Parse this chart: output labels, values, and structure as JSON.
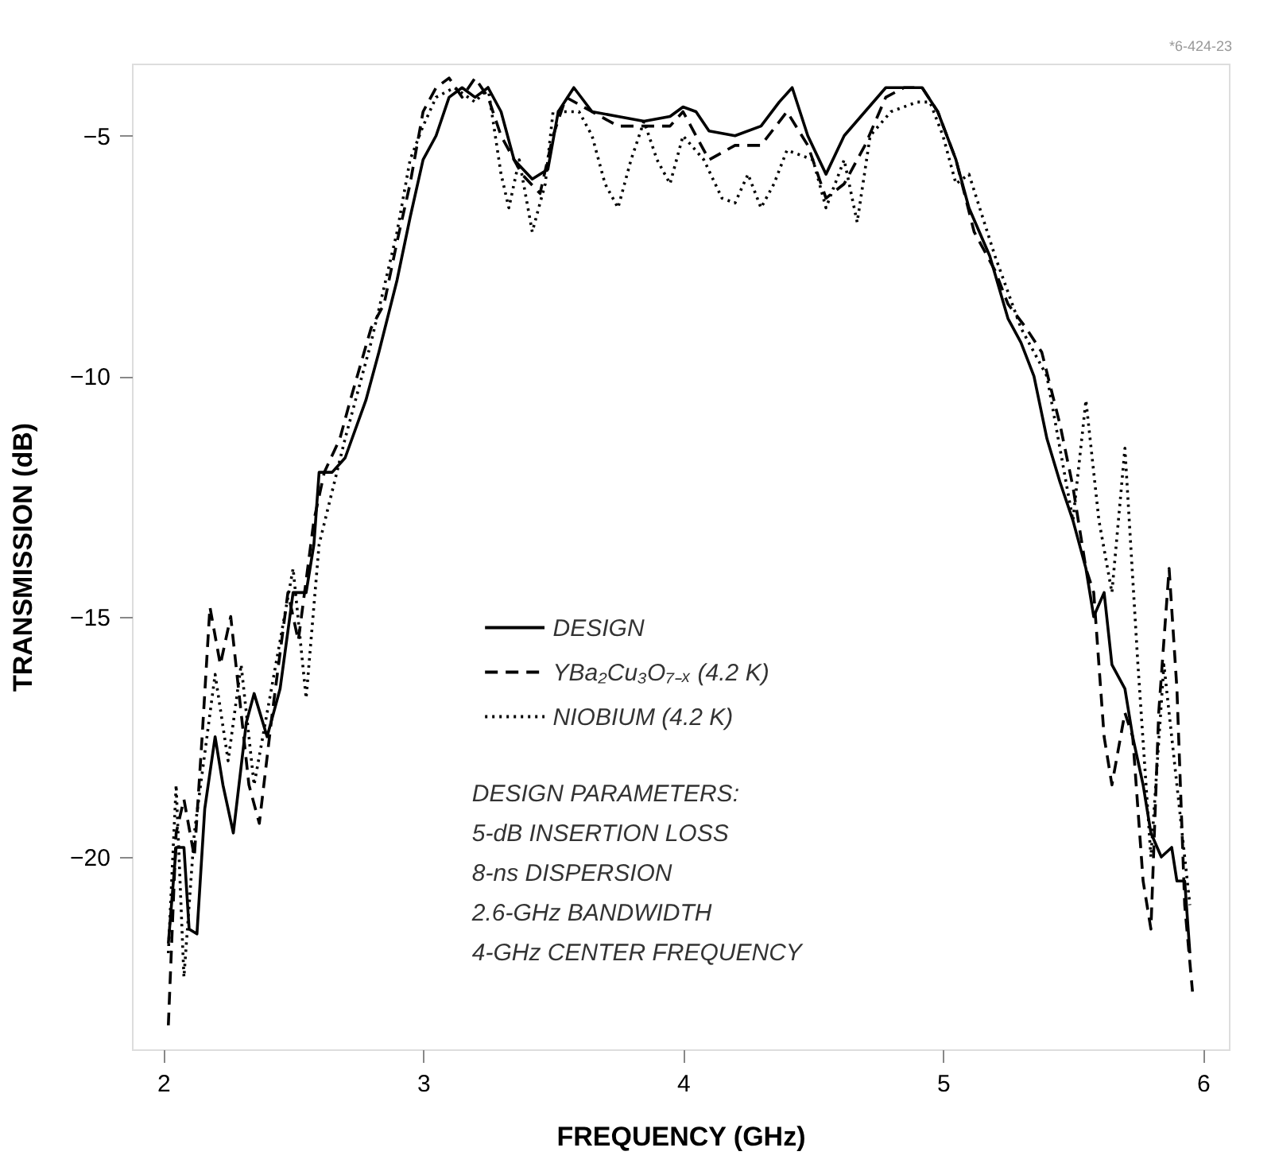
{
  "chart_data": {
    "type": "line",
    "xlabel": "FREQUENCY (GHz)",
    "ylabel": "TRANSMISSION (dB)",
    "xlim": [
      1.88,
      6.1
    ],
    "ylim": [
      -24,
      -3.5
    ],
    "xticks": [
      2,
      3,
      4,
      5,
      6
    ],
    "yticks": [
      -5,
      -10,
      -15,
      -20
    ],
    "grid": false,
    "legend": "center",
    "series": [
      {
        "name": "DESIGN",
        "color": "#000000",
        "line_style": "solid",
        "x": [
          2.02,
          2.05,
          2.08,
          2.1,
          2.13,
          2.16,
          2.2,
          2.23,
          2.27,
          2.32,
          2.35,
          2.4,
          2.45,
          2.5,
          2.55,
          2.58,
          2.6,
          2.65,
          2.7,
          2.78,
          2.83,
          2.9,
          2.95,
          3.0,
          3.05,
          3.1,
          3.15,
          3.2,
          3.25,
          3.3,
          3.35,
          3.42,
          3.48,
          3.52,
          3.58,
          3.65,
          3.75,
          3.85,
          3.95,
          4.0,
          4.05,
          4.1,
          4.2,
          4.3,
          4.37,
          4.42,
          4.48,
          4.55,
          4.62,
          4.7,
          4.78,
          4.85,
          4.92,
          4.98,
          5.05,
          5.1,
          5.18,
          5.25,
          5.3,
          5.35,
          5.4,
          5.45,
          5.5,
          5.55,
          5.58,
          5.62,
          5.65,
          5.7,
          5.73,
          5.77,
          5.8,
          5.84,
          5.88,
          5.9,
          5.93,
          5.95
        ],
        "values": [
          -21.8,
          -19.8,
          -19.8,
          -21.5,
          -21.6,
          -19,
          -17.5,
          -18.5,
          -19.5,
          -17.2,
          -16.6,
          -17.5,
          -16.5,
          -14.5,
          -14.5,
          -13.5,
          -12.0,
          -12.0,
          -11.7,
          -10.5,
          -9.5,
          -8.0,
          -6.7,
          -5.5,
          -5.0,
          -4.2,
          -4.0,
          -4.2,
          -4.0,
          -4.5,
          -5.5,
          -5.9,
          -5.7,
          -4.5,
          -4.0,
          -4.5,
          -4.6,
          -4.7,
          -4.6,
          -4.4,
          -4.5,
          -4.9,
          -5.0,
          -4.8,
          -4.3,
          -4.0,
          -5.0,
          -5.8,
          -5.0,
          -4.5,
          -4.0,
          -4.0,
          -4.0,
          -4.5,
          -5.5,
          -6.5,
          -7.5,
          -8.8,
          -9.3,
          -10.0,
          -11.3,
          -12.2,
          -13.0,
          -14.0,
          -15.0,
          -14.5,
          -16.0,
          -16.5,
          -17.5,
          -18.5,
          -19.5,
          -20.0,
          -19.8,
          -20.5,
          -20.5,
          -22.0
        ]
      },
      {
        "name": "YBa₂Cu₃O₇₋ₓ (4.2 K)",
        "color": "#000000",
        "line_style": "dashed",
        "x": [
          2.02,
          2.05,
          2.08,
          2.12,
          2.15,
          2.18,
          2.22,
          2.26,
          2.3,
          2.33,
          2.37,
          2.42,
          2.48,
          2.52,
          2.58,
          2.62,
          2.68,
          2.72,
          2.8,
          2.85,
          2.9,
          2.95,
          3.0,
          3.05,
          3.1,
          3.15,
          3.2,
          3.25,
          3.3,
          3.38,
          3.45,
          3.5,
          3.55,
          3.65,
          3.75,
          3.85,
          3.95,
          4.0,
          4.05,
          4.1,
          4.2,
          4.3,
          4.4,
          4.48,
          4.55,
          4.62,
          4.7,
          4.78,
          4.85,
          4.92,
          4.98,
          5.05,
          5.12,
          5.2,
          5.25,
          5.32,
          5.38,
          5.45,
          5.5,
          5.55,
          5.58,
          5.62,
          5.65,
          5.7,
          5.73,
          5.77,
          5.8,
          5.83,
          5.87,
          5.9,
          5.93,
          5.96
        ],
        "values": [
          -23.5,
          -19.5,
          -18.8,
          -20,
          -17.5,
          -14.8,
          -16,
          -15.0,
          -17,
          -18.5,
          -19.3,
          -17.0,
          -14.5,
          -15.5,
          -13.0,
          -12.0,
          -11.3,
          -10.5,
          -9.0,
          -8.5,
          -7.2,
          -6.0,
          -4.5,
          -4.0,
          -3.8,
          -4.2,
          -3.8,
          -4.2,
          -5.0,
          -5.8,
          -6.2,
          -5.0,
          -4.2,
          -4.5,
          -4.8,
          -4.8,
          -4.8,
          -4.5,
          -5.0,
          -5.5,
          -5.2,
          -5.2,
          -4.5,
          -5.2,
          -6.3,
          -6.0,
          -5.2,
          -4.2,
          -4.0,
          -4.0,
          -4.5,
          -5.5,
          -7.0,
          -7.8,
          -8.5,
          -9.0,
          -9.5,
          -11.0,
          -12.3,
          -14.0,
          -14.5,
          -17.5,
          -18.5,
          -17.0,
          -17.5,
          -20.5,
          -21.5,
          -17.0,
          -14.0,
          -16.5,
          -21,
          -22.8
        ]
      },
      {
        "name": "NIOBIUM (4.2 K)",
        "color": "#000000",
        "line_style": "dotted",
        "x": [
          2.02,
          2.05,
          2.08,
          2.12,
          2.2,
          2.25,
          2.3,
          2.35,
          2.45,
          2.5,
          2.55,
          2.6,
          2.7,
          2.8,
          2.9,
          2.95,
          3.0,
          3.05,
          3.12,
          3.2,
          3.25,
          3.3,
          3.33,
          3.37,
          3.42,
          3.47,
          3.5,
          3.6,
          3.65,
          3.7,
          3.75,
          3.8,
          3.85,
          3.9,
          3.95,
          4.0,
          4.08,
          4.15,
          4.2,
          4.25,
          4.3,
          4.35,
          4.4,
          4.5,
          4.55,
          4.62,
          4.67,
          4.72,
          4.8,
          4.9,
          4.95,
          5.0,
          5.05,
          5.1,
          5.2,
          5.3,
          5.4,
          5.45,
          5.5,
          5.55,
          5.6,
          5.65,
          5.7,
          5.75,
          5.8,
          5.85,
          5.9,
          5.95
        ],
        "values": [
          -22,
          -18.5,
          -22.5,
          -19.5,
          -16.2,
          -18.0,
          -16.0,
          -18.5,
          -15.5,
          -14.0,
          -16.7,
          -13.5,
          -11.3,
          -9.3,
          -7.0,
          -5.5,
          -4.8,
          -4.2,
          -4.0,
          -4.3,
          -4.0,
          -5.8,
          -6.5,
          -5.5,
          -7.0,
          -6.0,
          -4.5,
          -4.5,
          -5.0,
          -6.0,
          -6.5,
          -5.5,
          -4.7,
          -5.5,
          -6.0,
          -5.0,
          -5.5,
          -6.3,
          -6.4,
          -5.8,
          -6.5,
          -6.0,
          -5.3,
          -5.5,
          -6.5,
          -5.5,
          -6.8,
          -5.0,
          -4.5,
          -4.3,
          -4.3,
          -5.0,
          -6.0,
          -5.8,
          -7.5,
          -9.0,
          -10.0,
          -11.5,
          -13.0,
          -10.5,
          -13.0,
          -14.5,
          -11.5,
          -16.0,
          -20.0,
          -16.0,
          -18.5,
          -21
        ]
      }
    ],
    "annotations": [
      "DESIGN PARAMETERS:",
      " 5-dB INSERTION LOSS",
      " 8-ns DISPERSION",
      " 2.6-GHz BANDWIDTH",
      " 4-GHz CENTER FREQUENCY",
      "*6-424-23"
    ]
  }
}
